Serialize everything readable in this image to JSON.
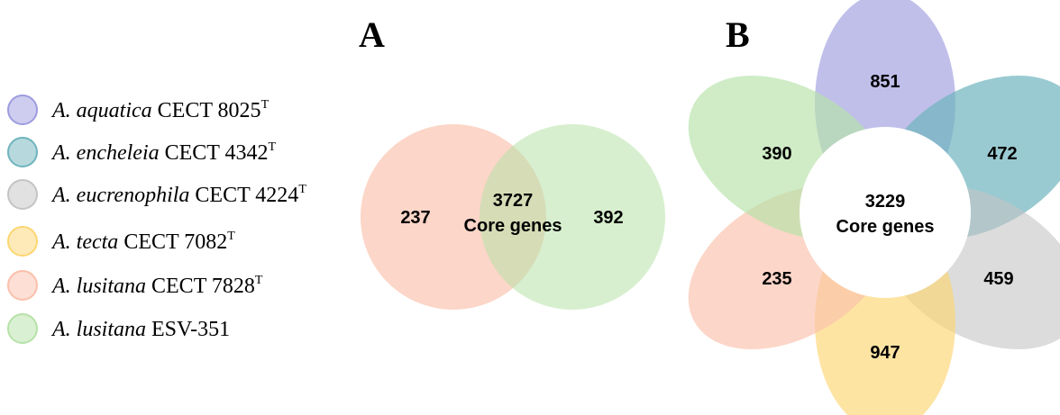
{
  "panels": {
    "a_label": "A",
    "b_label": "B"
  },
  "legend": [
    {
      "species": "A. aquatica",
      "strain": "CECT 8025",
      "sup": "T",
      "color": "#9e9cdf"
    },
    {
      "species": "A. encheleia",
      "strain": "CECT 4342",
      "sup": "T",
      "color": "#6fb4bd"
    },
    {
      "species": "A. eucrenophila",
      "strain": "CECT 4224",
      "sup": "T",
      "color": "#c4c4c4"
    },
    {
      "species": "A. tecta",
      "strain": "CECT 7082",
      "sup": "T",
      "color": "#fcd671"
    },
    {
      "species": "A. lusitana",
      "strain": "CECT 7828",
      "sup": "T",
      "color": "#fbc0ab"
    },
    {
      "species": "A. lusitana",
      "strain": "ESV-351",
      "sup": "",
      "color": "#b6e2a8"
    }
  ],
  "venn_a": {
    "left_value": "237",
    "right_value": "392",
    "core_value": "3727",
    "core_label": "Core genes"
  },
  "venn_b": {
    "petals": [
      {
        "value": "851",
        "color": "#9e9cdf"
      },
      {
        "value": "472",
        "color": "#6fb4bd"
      },
      {
        "value": "459",
        "color": "#c4c4c4"
      },
      {
        "value": "947",
        "color": "#fcd671"
      },
      {
        "value": "235",
        "color": "#fbc0ab"
      },
      {
        "value": "390",
        "color": "#b6e2a8"
      }
    ],
    "core_value": "3229",
    "core_label": "Core genes"
  }
}
